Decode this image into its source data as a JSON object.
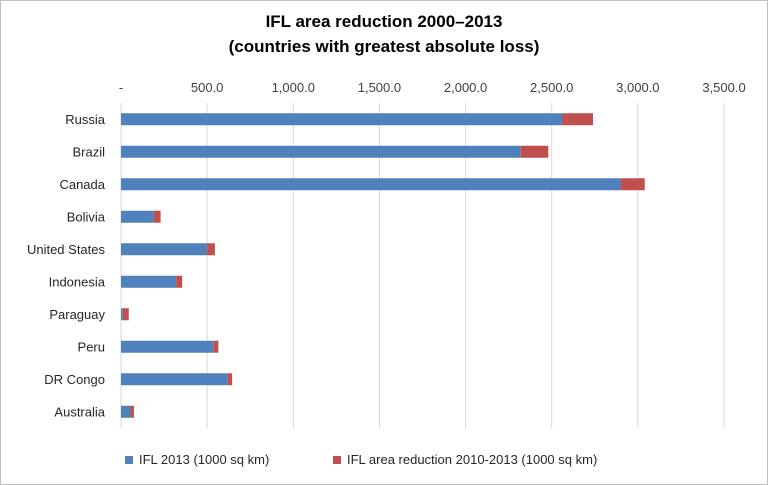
{
  "chart_data": {
    "type": "bar",
    "orientation": "horizontal",
    "stacked": true,
    "title": "IFL area reduction 2000–2013",
    "subtitle": "(countries with greatest absolute loss)",
    "categories": [
      "Russia",
      "Brazil",
      "Canada",
      "Bolivia",
      "United States",
      "Indonesia",
      "Paraguay",
      "Peru",
      "DR Congo",
      "Australia"
    ],
    "series": [
      {
        "name": "IFL 2013 (1000 sq km)",
        "color": "#4f81bd",
        "values": [
          2560,
          2320,
          2900,
          190,
          500,
          320,
          10,
          535,
          620,
          55
        ]
      },
      {
        "name": "IFL area reduction 2010-2013 (1000 sq km)",
        "color": "#c0504d",
        "values": [
          180,
          160,
          140,
          40,
          45,
          35,
          35,
          30,
          25,
          20
        ]
      }
    ],
    "xlim": [
      0,
      3500
    ],
    "xticks": [
      0,
      500,
      1000,
      1500,
      2000,
      2500,
      3000,
      3500
    ],
    "xtick_labels": [
      "-",
      "500.0",
      "1,000.0",
      "1,500.0",
      "2,000.0",
      "2,500.0",
      "3,000.0",
      "3,500.0"
    ],
    "axis_position": "top",
    "grid": true,
    "legend": "bottom"
  }
}
